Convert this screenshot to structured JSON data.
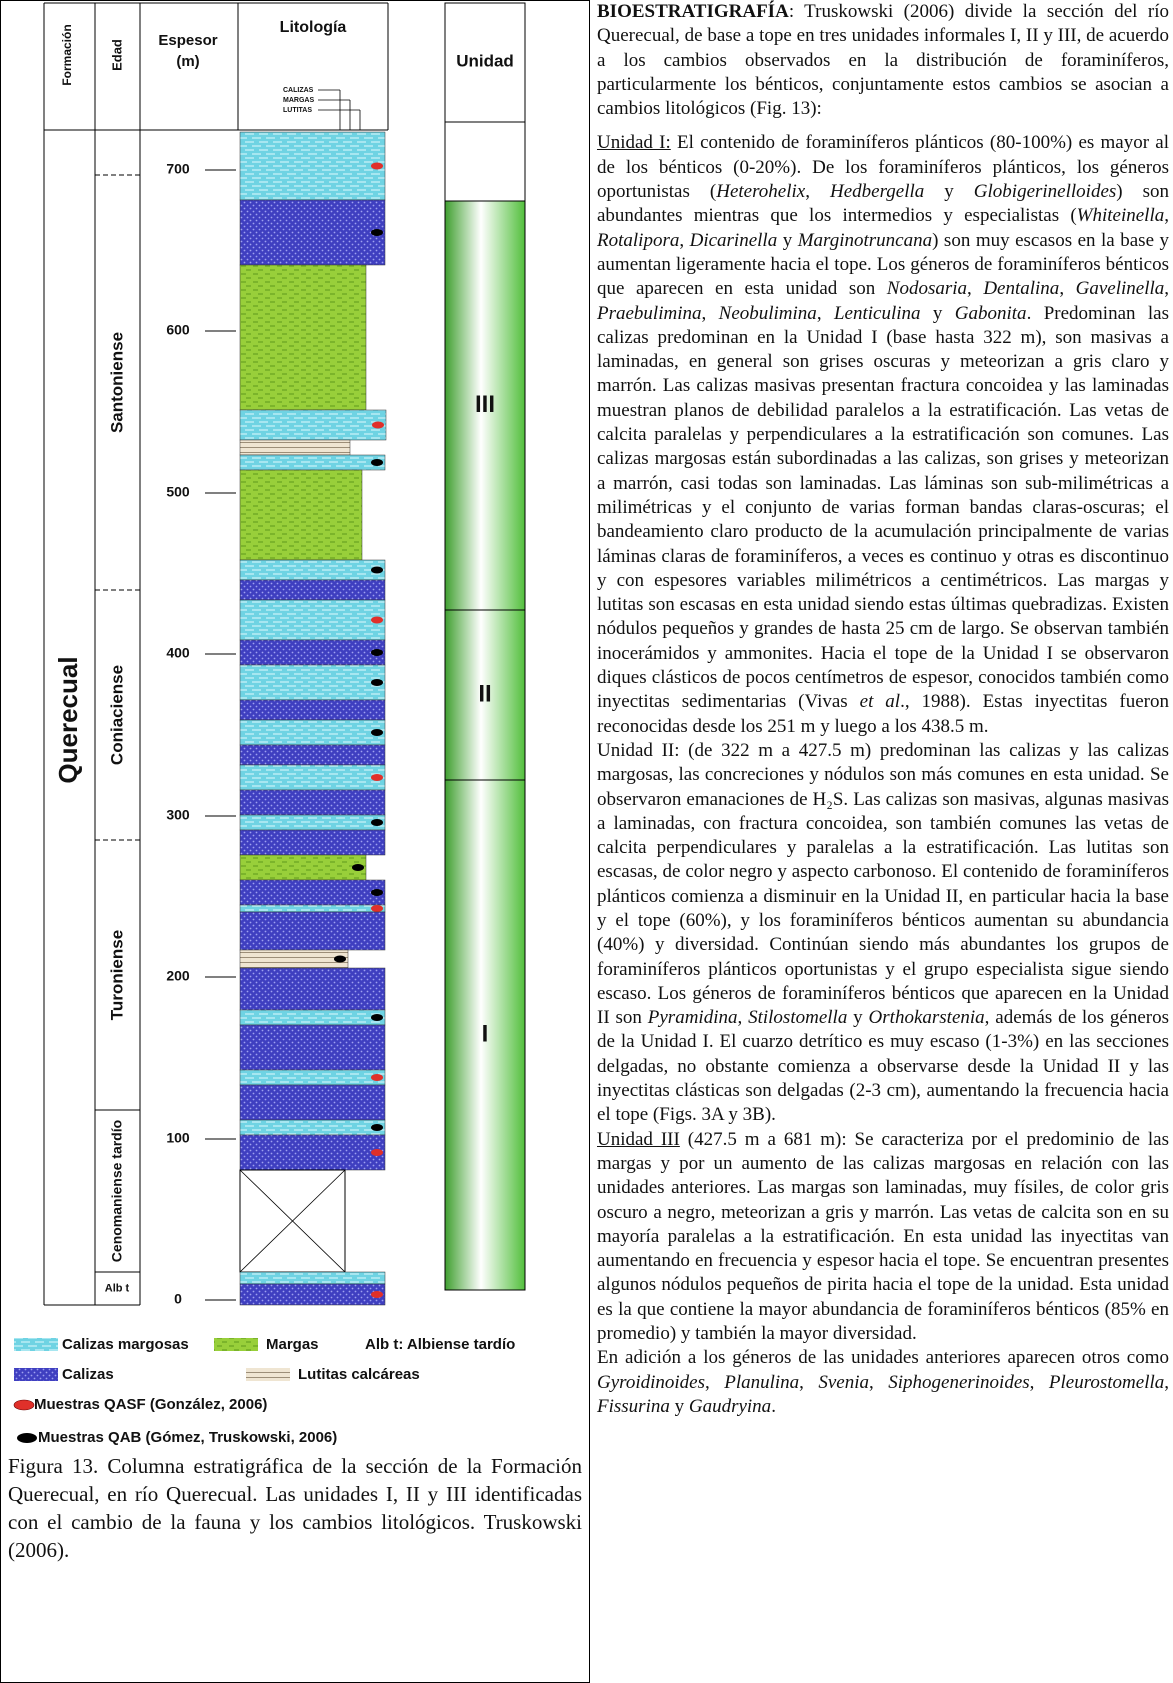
{
  "figure": {
    "header": {
      "formation": "Formación",
      "age": "Edad",
      "thickness": "Espesor",
      "thickness_unit": "(m)",
      "lithology": "Litología",
      "lithology_key": [
        "CALIZAS",
        "MARGAS",
        "LUTITAS"
      ],
      "unit": "Unidad"
    },
    "formation": "Querecual",
    "ages": [
      "Santoniense",
      "Coniaciense",
      "Turoniense",
      "Cenomaniense tardío",
      "Alb t"
    ],
    "thickness_labels": [
      700,
      600,
      500,
      400,
      300,
      200,
      100,
      0
    ],
    "units": [
      "III",
      "II",
      "I"
    ],
    "legend": [
      "Calizas margosas",
      "Margas",
      "Alb t: Albiense tardío",
      "Calizas",
      "Lutitas calcáreas",
      "Muestras QASF (González, 2006)",
      "Muestras QAB (Gómez, Truskowski, 2006)"
    ],
    "caption": "Figura 13. Columna estratigráfica de la sección de la Formación Querecual, en río Querecual. Las unidades I, II y III identificadas con el cambio de la fauna y los cambios litológicos. Truskowski (2006)."
  },
  "text": {
    "paragraphs": [
      [
        "BIOESTRATIGRAFÍA",
        ": Truskowski (2006) divide la sección del río Querecual, de base a tope en tres unidades informales I, II y III, de acuerdo a los cambios observados en la distribución de foraminíferos, particularmente los bénticos, conjuntamente estos cambios se asocian a cambios litológicos (Fig. 13):"
      ],
      [
        "Unidad I:",
        " El contenido de foraminíferos plánticos (80-100%) es mayor al de los bénticos (0-20%). De los foraminíferos plánticos, los géneros oportunistas (",
        "Heterohelix",
        ", ",
        "Hedbergella",
        " y ",
        "Globigerinelloides",
        ") son abundantes mientras que los intermedios y especialistas (",
        "Whiteinella",
        ", ",
        "Rotalipora",
        ", ",
        "Dicarinella",
        " y ",
        "Marginotruncana",
        ") son muy escasos en la base y aumentan ligeramente hacia el tope. Los géneros de foraminíferos bénticos que aparecen en esta unidad son ",
        "Nodosaria",
        ", ",
        "Dentalina",
        ", ",
        "Gavelinella",
        ", ",
        "Praebulimina",
        ", ",
        "Neobulimina",
        ", ",
        "Lenticulina",
        " y ",
        "Gabonita",
        ". Predominan las calizas predominan en la Unidad I (base hasta 322 m), son masivas a laminadas, en general son grises oscuras y meteorizan a gris claro y marrón. Las calizas masivas presentan fractura concoidea y las laminadas muestran planos de debilidad paralelos a la estratificación. Las vetas de calcita paralelas y perpendiculares a la estratificación son comunes. Las calizas margosas están subordinadas a las calizas, son grises y meteorizan a marrón, casi todas son laminadas. Las láminas son sub-milimétricas a milimétricas y el conjunto de varias forman bandas claras-oscuras; el bandeamiento claro producto de la acumulación principalmente de varias láminas claras de foraminíferos, a veces es continuo y otras es discontinuo y con espesores variables milimétricos a centimétricos. Las margas y lutitas son escasas en esta unidad siendo estas últimas quebradizas. Existen nódulos pequeños y grandes de hasta 25 cm de largo. Se observan también inocerámidos y ammonites. Hacia el tope de la Unidad I se observaron diques clásticos de pocos centímetros de espesor, conocidos también como inyectitas sedimentarias (Vivas ",
        "et al",
        "., 1988). Estas inyectitas fueron reconocidas desde  los 251 m y luego a los 438.5 m."
      ],
      [
        "Unidad II: (de 322 m a 427.5 m) predominan las calizas y las calizas margosas, las concreciones y nódulos son más comunes en esta unidad. Se observaron emanaciones de H₂S. Las calizas son masivas, algunas masivas a laminadas, con fractura concoidea, son también comunes las vetas de calcita perpendiculares y paralelas a la estratificación. Las lutitas son escasas, de color negro y aspecto carbonoso. El contenido de foraminíferos plánticos comienza a disminuir en la Unidad II, en particular hacia la base y el tope (60%), y los foraminíferos bénticos aumentan su abundancia (40%) y diversidad. Continúan siendo más abundantes los grupos de foraminíferos plánticos oportunistas y el grupo especialista sigue siendo escaso. Los géneros de foraminíferos bénticos que aparecen en la Unidad II son ",
        "Pyramidina",
        ", ",
        "Stilostomella",
        " y ",
        "Orthokarstenia",
        ", además de los géneros de la Unidad I. El cuarzo detrítico es muy escaso (1-3%) en las secciones delgadas, no obstante comienza a observarse desde la Unidad II y las inyectitas clásticas son delgadas (2-3 cm), aumentando la frecuencia hacia el tope (Figs. 3A y 3B)."
      ],
      [
        "Unidad III",
        " (427.5 m a 681 m): Se caracteriza por el predominio de las margas y por un aumento de las calizas margosas en relación con las unidades anteriores. Las margas son laminadas, muy físiles, de color gris oscuro a negro, meteorizan a gris y marrón. Las vetas de calcita son en su mayoría paralelas a la estratificación. En esta unidad las inyectitas van aumentando en frecuencia y espesor hacia el tope. Se encuentran presentes algunos nódulos pequeños de pirita hacia el tope de la unidad. Esta unidad es la que contiene la mayor abundancia de foraminíferos bénticos (85% en promedio) y también la mayor diversidad."
      ],
      [
        "En adición a los géneros de las unidades anteriores aparecen otros como ",
        "Gyroidinoides",
        ", ",
        "Planulina",
        ", ",
        "Svenia",
        ", ",
        "Siphogenerinoides",
        ", ",
        "Pleurostomella",
        ", ",
        "Fissurina",
        " y ",
        "Gaudryina",
        "."
      ]
    ]
  }
}
